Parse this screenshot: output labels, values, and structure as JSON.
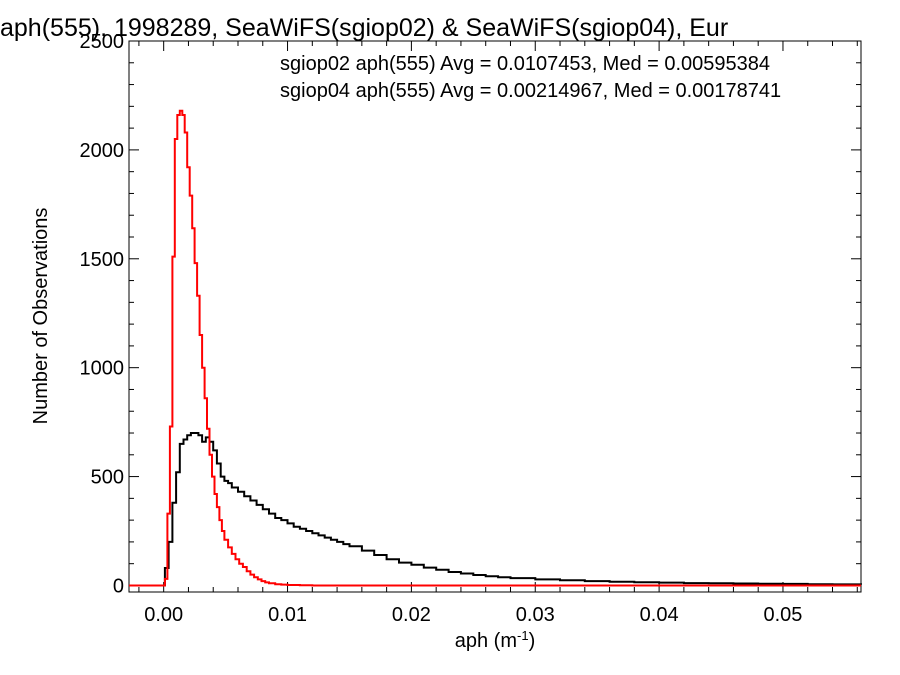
{
  "chart_data": {
    "type": "line",
    "title": "aph(555), 1998289, SeaWiFS(sgiop02) & SeaWiFS(sgiop04), Eur",
    "xlabel_main": "aph (m",
    "xlabel_sup": "-1",
    "xlabel_close": ")",
    "ylabel": "Number of Observations",
    "xlim": [
      -0.0028,
      0.0563
    ],
    "ylim": [
      -30,
      2500
    ],
    "xticks": [
      {
        "value": 0.0,
        "label": "0.00"
      },
      {
        "value": 0.01,
        "label": "0.01"
      },
      {
        "value": 0.02,
        "label": "0.02"
      },
      {
        "value": 0.03,
        "label": "0.03"
      },
      {
        "value": 0.04,
        "label": "0.04"
      },
      {
        "value": 0.05,
        "label": "0.05"
      }
    ],
    "yticks": [
      {
        "value": 0,
        "label": "0"
      },
      {
        "value": 500,
        "label": "500"
      },
      {
        "value": 1000,
        "label": "1000"
      },
      {
        "value": 1500,
        "label": "1500"
      },
      {
        "value": 2000,
        "label": "2000"
      },
      {
        "value": 2500,
        "label": "2500"
      }
    ],
    "legend_position": "top-right",
    "series": [
      {
        "name": "sgiop02 aph(555) Avg = 0.0107453, Med = 0.00595384",
        "color": "#000000",
        "x": [
          -0.0028,
          -0.0002,
          0.0001,
          0.0004,
          0.0007,
          0.001,
          0.0013,
          0.0016,
          0.0019,
          0.0022,
          0.0025,
          0.0028,
          0.0031,
          0.0034,
          0.0037,
          0.004,
          0.0043,
          0.0046,
          0.0049,
          0.0052,
          0.0055,
          0.006,
          0.0065,
          0.007,
          0.0075,
          0.008,
          0.0085,
          0.009,
          0.0095,
          0.01,
          0.0105,
          0.011,
          0.0115,
          0.012,
          0.0125,
          0.013,
          0.0135,
          0.014,
          0.0145,
          0.015,
          0.016,
          0.017,
          0.018,
          0.019,
          0.02,
          0.021,
          0.022,
          0.023,
          0.024,
          0.025,
          0.026,
          0.027,
          0.028,
          0.03,
          0.032,
          0.034,
          0.036,
          0.038,
          0.04,
          0.042,
          0.044,
          0.046,
          0.048,
          0.05,
          0.052,
          0.054,
          0.0563
        ],
        "y": [
          0,
          0,
          80,
          200,
          380,
          520,
          650,
          670,
          690,
          700,
          700,
          690,
          660,
          680,
          660,
          620,
          560,
          500,
          480,
          470,
          450,
          430,
          410,
          390,
          370,
          350,
          330,
          310,
          300,
          285,
          270,
          260,
          250,
          240,
          230,
          220,
          210,
          200,
          190,
          180,
          160,
          140,
          120,
          105,
          95,
          82,
          72,
          62,
          55,
          48,
          42,
          38,
          34,
          28,
          24,
          20,
          17,
          15,
          13,
          11,
          10,
          9,
          8,
          7,
          6,
          5,
          4
        ]
      },
      {
        "name": "sgiop04 aph(555) Avg = 0.00214967, Med = 0.00178741",
        "color": "#ff0000",
        "x": [
          -0.0028,
          -0.0002,
          0.0001,
          0.0003,
          0.0005,
          0.0007,
          0.0009,
          0.0011,
          0.0013,
          0.0015,
          0.0017,
          0.0019,
          0.0021,
          0.0023,
          0.0025,
          0.0027,
          0.0029,
          0.0031,
          0.0033,
          0.0035,
          0.0037,
          0.0039,
          0.0041,
          0.0043,
          0.0045,
          0.0047,
          0.0049,
          0.0052,
          0.0055,
          0.0058,
          0.0061,
          0.0064,
          0.0067,
          0.007,
          0.0073,
          0.0076,
          0.0079,
          0.0082,
          0.0085,
          0.009,
          0.0095,
          0.01,
          0.011,
          0.012,
          0.014,
          0.02,
          0.03,
          0.0563
        ],
        "y": [
          0,
          0,
          30,
          330,
          730,
          1510,
          2050,
          2160,
          2180,
          2160,
          2080,
          1920,
          1790,
          1640,
          1480,
          1330,
          1150,
          1000,
          860,
          720,
          600,
          500,
          420,
          360,
          300,
          250,
          210,
          175,
          145,
          120,
          100,
          85,
          65,
          50,
          38,
          28,
          20,
          14,
          10,
          6,
          4,
          2,
          1,
          0,
          0,
          0,
          0,
          0
        ]
      }
    ]
  }
}
